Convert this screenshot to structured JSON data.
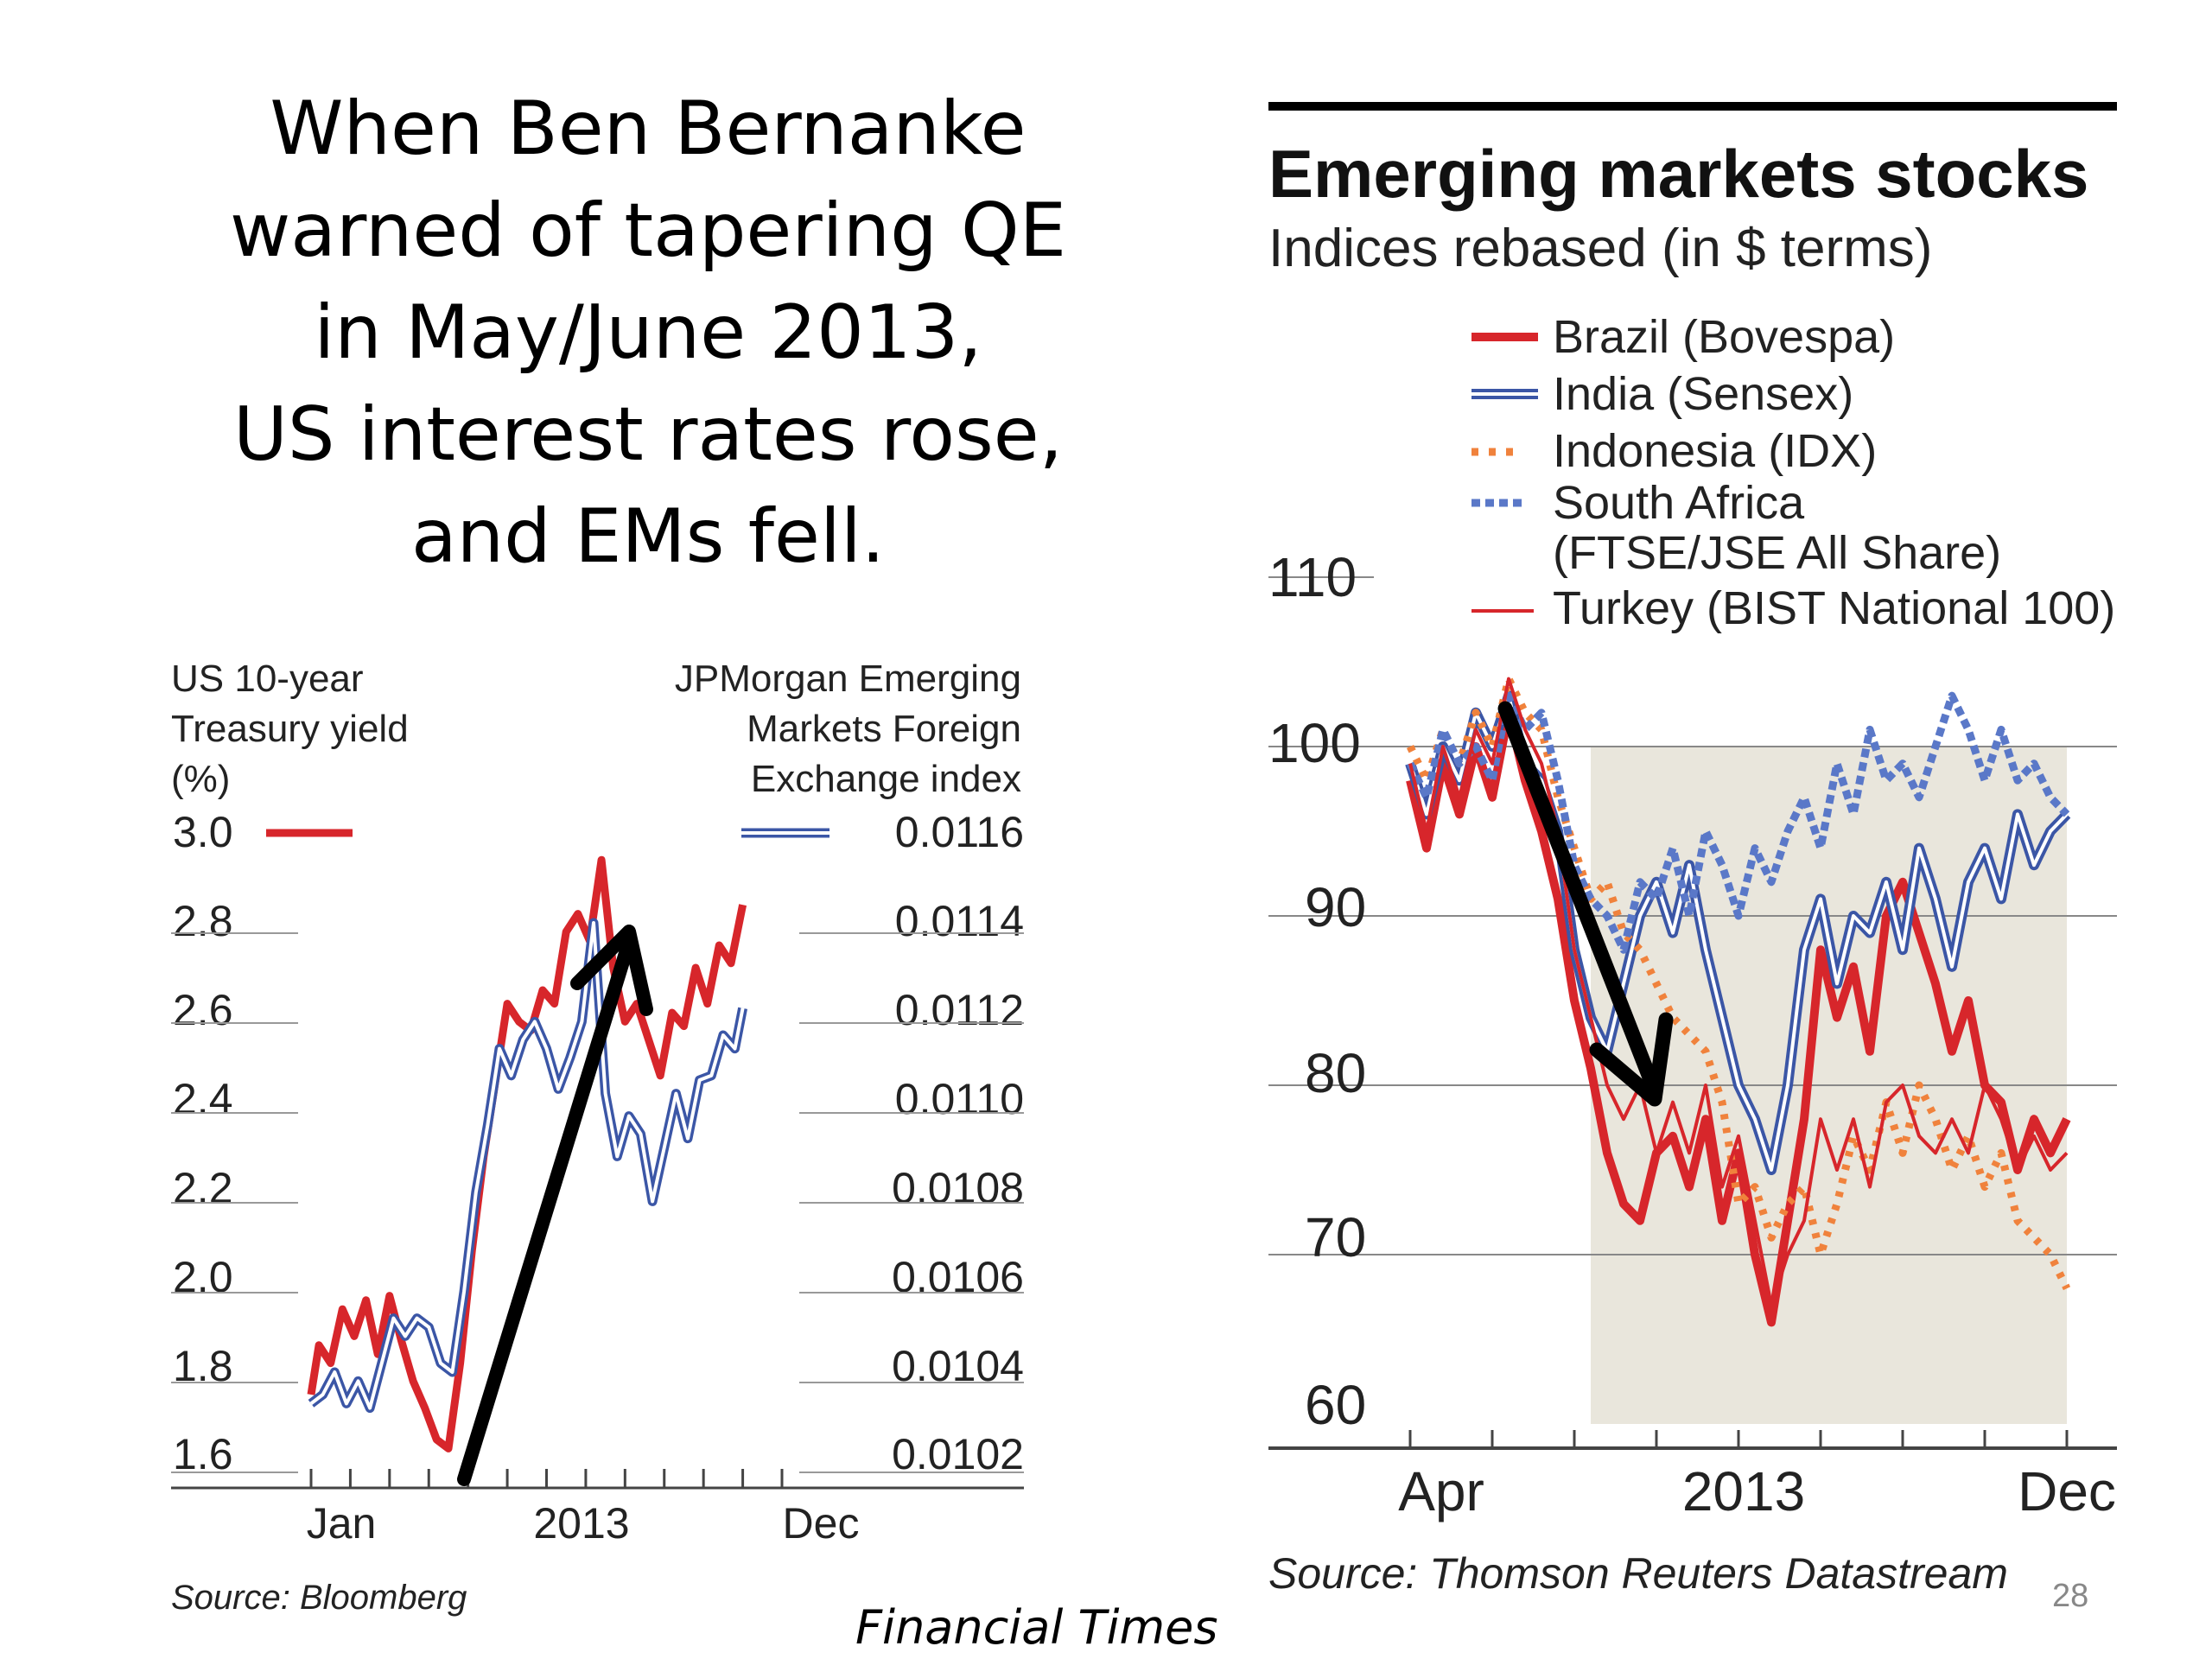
{
  "headline": {
    "lines": [
      "When Ben Bernanke",
      "warned of tapering QE",
      "in May/June 2013,",
      "US interest rates rose,",
      "and EMs fell."
    ]
  },
  "footer": {
    "credit": "Financial  Times",
    "page_number": "28"
  },
  "chart_data": [
    {
      "type": "line",
      "left_axis_label": [
        "US 10-year",
        "Treasury yield",
        "(%)"
      ],
      "right_axis_label": [
        "JPMorgan Emerging",
        "Markets Foreign",
        "Exchange index"
      ],
      "yticks_left": [
        "3.0",
        "2.8",
        "2.6",
        "2.4",
        "2.2",
        "2.0",
        "1.8",
        "1.6"
      ],
      "yticks_right": [
        "0.0116",
        "0.0114",
        "0.0112",
        "0.0110",
        "0.0108",
        "0.0106",
        "0.0104",
        "0.0102"
      ],
      "xtick_labels": [
        "Jan",
        "2013",
        "Dec"
      ],
      "ylim_left": [
        1.6,
        3.0
      ],
      "ylim_right": [
        0.0102,
        0.0116
      ],
      "xlim": [
        0,
        12
      ],
      "colors": {
        "yield": "#d7262b",
        "fx": "#3b56a6",
        "arrow": "#000000"
      },
      "series": [
        {
          "axis": "left",
          "x": [
            0,
            0.2,
            0.5,
            0.8,
            1.1,
            1.4,
            1.7,
            2.0,
            2.3,
            2.6,
            2.9,
            3.2,
            3.5,
            3.8,
            4.1,
            4.4,
            4.7,
            5.0,
            5.3,
            5.6,
            5.9,
            6.2,
            6.5,
            6.8,
            7.1,
            7.4,
            7.7,
            8.0,
            8.3,
            8.6,
            8.9,
            9.2,
            9.5,
            9.8,
            10.1,
            10.4,
            10.7,
            11.0
          ],
          "values": [
            1.75,
            1.86,
            1.82,
            1.94,
            1.88,
            1.96,
            1.84,
            1.97,
            1.87,
            1.78,
            1.72,
            1.65,
            1.63,
            1.82,
            2.07,
            2.28,
            2.45,
            2.62,
            2.58,
            2.56,
            2.65,
            2.62,
            2.78,
            2.82,
            2.76,
            2.94,
            2.7,
            2.58,
            2.62,
            2.54,
            2.46,
            2.6,
            2.57,
            2.7,
            2.62,
            2.75,
            2.71,
            2.84
          ]
        },
        {
          "axis": "right",
          "x": [
            0,
            0.3,
            0.6,
            0.9,
            1.2,
            1.5,
            1.8,
            2.1,
            2.4,
            2.7,
            3.0,
            3.3,
            3.6,
            3.9,
            4.2,
            4.5,
            4.8,
            5.1,
            5.4,
            5.7,
            6.0,
            6.3,
            6.6,
            6.9,
            7.2,
            7.5,
            7.8,
            8.1,
            8.4,
            8.7,
            9.0,
            9.3,
            9.6,
            9.9,
            10.2,
            10.5,
            10.8,
            11.0
          ],
          "values": [
            0.01033,
            0.01035,
            0.0104,
            0.01033,
            0.01038,
            0.01032,
            0.01042,
            0.01052,
            0.01048,
            0.01052,
            0.0105,
            0.01042,
            0.0104,
            0.01058,
            0.0108,
            0.01095,
            0.01112,
            0.01106,
            0.01114,
            0.01118,
            0.01112,
            0.01103,
            0.0111,
            0.01118,
            0.0114,
            0.01102,
            0.01088,
            0.01097,
            0.01093,
            0.01078,
            0.0109,
            0.01102,
            0.01092,
            0.01105,
            0.01106,
            0.01115,
            0.01112,
            0.01121
          ]
        }
      ]
    },
    {
      "type": "line",
      "title": "Emerging markets stocks",
      "subtitle": "Indices rebased (in $ terms)",
      "yticks": [
        "110",
        "100",
        "90",
        "80",
        "70",
        "60"
      ],
      "xtick_labels": [
        "Apr",
        "2013",
        "Dec"
      ],
      "ylim": [
        60,
        110
      ],
      "xlim": [
        0,
        20
      ],
      "legend": [
        "Brazil (Bovespa)",
        "India (Sensex)",
        "Indonesia (IDX)",
        "South Africa",
        "(FTSE/JSE All Share)",
        "Turkey (BIST National 100)"
      ],
      "source": "Source: Thomson Reuters Datastream",
      "series": [
        {
          "name": "Brazil (Bovespa)",
          "color": "#d7262b",
          "style": "solid",
          "x": [
            0,
            0.5,
            1,
            1.5,
            2,
            2.5,
            3,
            3.5,
            4,
            4.5,
            5,
            5.5,
            6,
            6.5,
            7,
            7.5,
            8,
            8.5,
            9,
            9.5,
            10,
            10.5,
            11,
            11.5,
            12,
            12.5,
            13,
            13.5,
            14,
            14.5,
            15,
            15.5,
            16,
            16.5,
            17,
            17.5,
            18,
            18.5,
            19,
            19.5,
            20
          ],
          "values": [
            98,
            94,
            99,
            96,
            100,
            97,
            102,
            98,
            95,
            91,
            85,
            81,
            76,
            73,
            72,
            76,
            77,
            74,
            78,
            72,
            76,
            70,
            66,
            72,
            78,
            88,
            84,
            87,
            82,
            90,
            92,
            89,
            86,
            82,
            85,
            80,
            79,
            75,
            78,
            76,
            78
          ]
        },
        {
          "name": "India (Sensex)",
          "color": "#3b56a6",
          "style": "double",
          "x": [
            0,
            0.5,
            1,
            1.5,
            2,
            2.5,
            3,
            3.5,
            4,
            4.5,
            5,
            5.5,
            6,
            6.5,
            7,
            7.5,
            8,
            8.5,
            9,
            9.5,
            10,
            10.5,
            11,
            11.5,
            12,
            12.5,
            13,
            13.5,
            14,
            14.5,
            15,
            15.5,
            16,
            16.5,
            17,
            17.5,
            18,
            18.5,
            19,
            19.5,
            20
          ],
          "values": [
            99,
            96,
            100,
            98,
            102,
            100,
            103,
            99,
            98,
            95,
            88,
            84,
            82,
            86,
            90,
            92,
            89,
            93,
            88,
            84,
            80,
            78,
            75,
            80,
            88,
            91,
            86,
            90,
            89,
            92,
            88,
            94,
            91,
            87,
            92,
            94,
            91,
            96,
            93,
            95,
            96
          ]
        },
        {
          "name": "Indonesia (IDX)",
          "color": "#f0823c",
          "style": "dotted",
          "x": [
            0,
            0.5,
            1,
            1.5,
            2,
            2.5,
            3,
            3.5,
            4,
            4.5,
            5,
            5.5,
            6,
            6.5,
            7,
            7.5,
            8,
            8.5,
            9,
            9.5,
            10,
            10.5,
            11,
            11.5,
            12,
            12.5,
            13,
            13.5,
            14,
            14.5,
            15,
            15.5,
            16,
            16.5,
            17,
            17.5,
            18,
            18.5,
            19,
            19.5,
            20
          ],
          "values": [
            100,
            98,
            101,
            99,
            102,
            100,
            104,
            102,
            101,
            97,
            94,
            91,
            92,
            89,
            88,
            86,
            84,
            83,
            82,
            79,
            73,
            74,
            71,
            73,
            74,
            70,
            73,
            77,
            75,
            79,
            76,
            80,
            78,
            75,
            77,
            74,
            76,
            72,
            71,
            70,
            68
          ]
        },
        {
          "name": "South Africa (FTSE/JSE All Share)",
          "color": "#5a78c8",
          "style": "square-dotted",
          "x": [
            0,
            0.5,
            1,
            1.5,
            2,
            2.5,
            3,
            3.5,
            4,
            4.5,
            5,
            5.5,
            6,
            6.5,
            7,
            7.5,
            8,
            8.5,
            9,
            9.5,
            10,
            10.5,
            11,
            11.5,
            12,
            12.5,
            13,
            13.5,
            14,
            14.5,
            15,
            15.5,
            16,
            16.5,
            17,
            17.5,
            18,
            18.5,
            19,
            19.5,
            20
          ],
          "values": [
            99,
            97,
            101,
            99,
            100,
            98,
            103,
            101,
            102,
            98,
            93,
            91,
            90,
            88,
            92,
            91,
            94,
            90,
            95,
            93,
            90,
            94,
            92,
            95,
            97,
            94,
            99,
            96,
            101,
            98,
            99,
            97,
            100,
            103,
            101,
            98,
            101,
            98,
            99,
            97,
            96
          ]
        },
        {
          "name": "Turkey (BIST National 100)",
          "color": "#d7262b",
          "style": "thin",
          "x": [
            0,
            0.5,
            1,
            1.5,
            2,
            2.5,
            3,
            3.5,
            4,
            4.5,
            5,
            5.5,
            6,
            6.5,
            7,
            7.5,
            8,
            8.5,
            9,
            9.5,
            10,
            10.5,
            11,
            11.5,
            12,
            12.5,
            13,
            13.5,
            14,
            14.5,
            15,
            15.5,
            16,
            16.5,
            17,
            17.5,
            18,
            18.5,
            19,
            19.5,
            20
          ],
          "values": [
            99,
            95,
            100,
            97,
            101,
            99,
            104,
            101,
            99,
            95,
            88,
            84,
            80,
            78,
            80,
            76,
            79,
            76,
            80,
            74,
            77,
            72,
            67,
            70,
            72,
            78,
            75,
            78,
            74,
            79,
            80,
            77,
            76,
            78,
            76,
            80,
            78,
            75,
            77,
            75,
            76
          ]
        }
      ]
    }
  ],
  "left_chart_source": "Source: Bloomberg"
}
